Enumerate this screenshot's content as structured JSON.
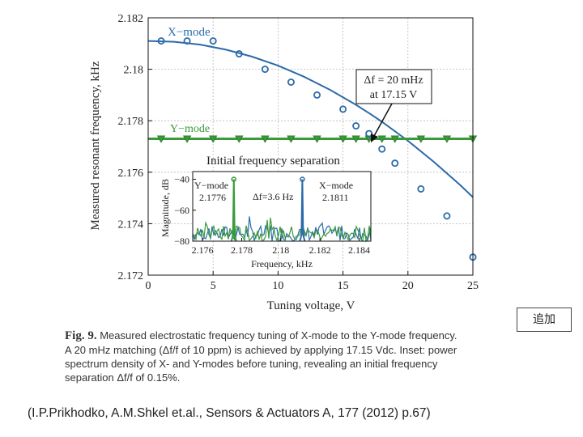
{
  "badge": "追加",
  "chart_data": {
    "type": "scatter",
    "xlabel": "Tuning voltage, V",
    "ylabel": "Measured resonant frequency, kHz",
    "xlim": [
      0,
      25
    ],
    "ylim": [
      2.172,
      2.182
    ],
    "xticks": [
      "0",
      "5",
      "10",
      "15",
      "20",
      "25"
    ],
    "xtick_values": [
      0,
      5,
      10,
      15,
      20,
      25
    ],
    "yticks": [
      "2.172",
      "2.174",
      "2.176",
      "2.178",
      "2.18",
      "2.182"
    ],
    "ytick_values": [
      2.172,
      2.174,
      2.176,
      2.178,
      2.18,
      2.182
    ],
    "grid": true,
    "series": [
      {
        "name": "X-mode",
        "label": "X−mode",
        "color": "#2c6ba8",
        "marker": "circle",
        "x": [
          1,
          3,
          5,
          7,
          9,
          11,
          13,
          15,
          16,
          17,
          18,
          19,
          21,
          23,
          25
        ],
        "y": [
          2.1811,
          2.1811,
          2.1811,
          2.1806,
          2.18,
          2.1795,
          2.179,
          2.17845,
          2.1778,
          2.1775,
          2.1769,
          2.17635,
          2.17535,
          2.1743,
          2.1727
        ],
        "fit_x": [
          0,
          2,
          4,
          6,
          8,
          10,
          12,
          14,
          16,
          17.15,
          18,
          20,
          22,
          24,
          25
        ],
        "fit_y": [
          2.1811,
          2.18107,
          2.18096,
          2.18076,
          2.18049,
          2.18014,
          2.17971,
          2.1792,
          2.17862,
          2.17825,
          2.17796,
          2.17722,
          2.1764,
          2.17551,
          2.17503
        ]
      },
      {
        "name": "Y-mode",
        "label": "Y−mode",
        "color": "#3a9a3a",
        "marker": "triangle-down",
        "x": [
          1,
          3,
          5,
          7,
          9,
          11,
          13,
          15,
          16,
          17,
          18,
          19,
          21,
          23,
          25
        ],
        "y": [
          2.1773,
          2.1773,
          2.1773,
          2.1773,
          2.1773,
          2.1773,
          2.1773,
          2.1773,
          2.1773,
          2.1773,
          2.1773,
          2.1773,
          2.1773,
          2.1773,
          2.1773
        ]
      }
    ],
    "annotations": {
      "match_line1": "Δf = 20 mHz",
      "match_line2": "at 17.15 V",
      "match_voltage": 17.15,
      "initial_separation": "Initial frequency separation"
    },
    "inset": {
      "type": "line",
      "xlabel": "Frequency, kHz",
      "ylabel": "Magnitude, dB",
      "xlim": [
        2.1755,
        2.1846
      ],
      "ylim": [
        -80,
        -35
      ],
      "xticks": [
        "2.176",
        "2.178",
        "2.18",
        "2.182",
        "2.184"
      ],
      "xtick_values": [
        2.176,
        2.178,
        2.18,
        2.182,
        2.184
      ],
      "yticks": [
        "−40",
        "−60",
        "−80"
      ],
      "ytick_values": [
        -40,
        -60,
        -80
      ],
      "y_mode_label": "Y−mode",
      "y_mode_freq": "2.1776",
      "x_mode_label": "X−mode",
      "x_mode_freq": "2.1811",
      "df_label": "Δf=3.6 Hz",
      "y_peak_freq": 2.1776,
      "x_peak_freq": 2.1811,
      "peak_level": -40
    }
  },
  "caption": {
    "fig_label": "Fig. 9.",
    "line1": "Measured electrostatic frequency tuning of X-mode to the Y-mode frequency.",
    "line2": "A 20 mHz matching (Δf/f of 10 ppm) is achieved by applying 17.15 Vdc. Inset: power",
    "line3": "spectrum density of X- and Y-modes before tuning, revealing an initial frequency",
    "line4": "separation Δf/f of 0.15%."
  },
  "citation": "(I.P.Prikhodko, A.M.Shkel et.al., Sensors & Actuators A, 177 (2012) p.67)"
}
